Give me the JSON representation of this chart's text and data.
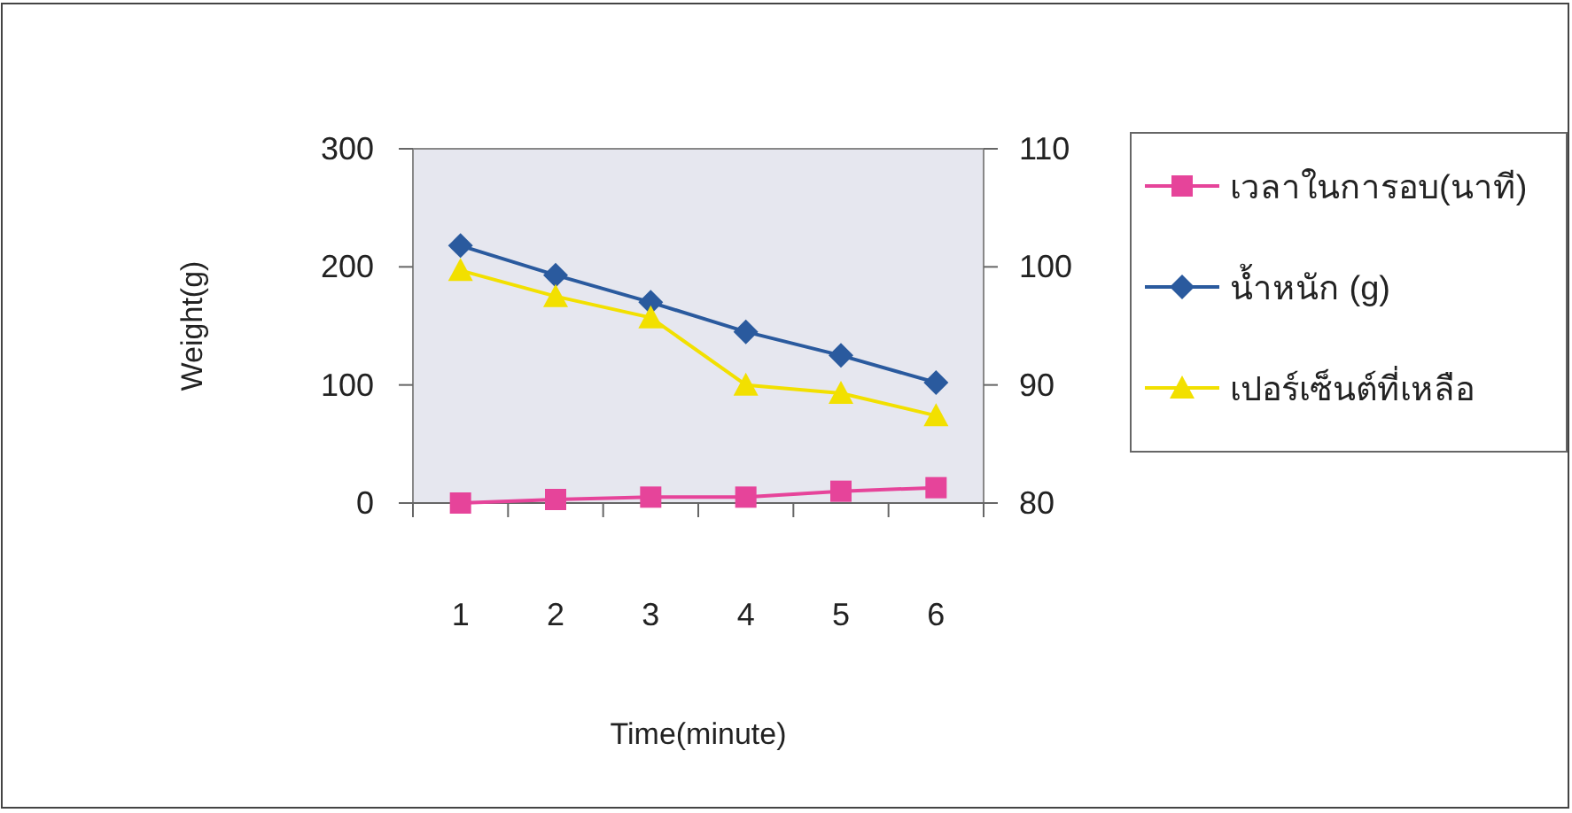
{
  "chart_data": {
    "type": "line",
    "xlabel": "Time(minute)",
    "ylabel": "Weight(g)",
    "categories": [
      "1",
      "2",
      "3",
      "4",
      "5",
      "6"
    ],
    "series": [
      {
        "name": "เวลาในการอบ(นาที)",
        "color": "#e6449a",
        "marker": "square",
        "values": [
          0,
          3,
          5,
          5,
          10,
          13
        ]
      },
      {
        "name": "น้ำหนัก (g)",
        "color": "#2a5a9e",
        "marker": "diamond",
        "values": [
          218,
          193,
          170,
          145,
          125,
          102
        ]
      },
      {
        "name": "เปอร์เซ็นต์ที่เหลือ",
        "color": "#f2e000",
        "marker": "triangle",
        "axis": "y2",
        "values": [
          99.7,
          97.5,
          95.7,
          90.0,
          89.3,
          87.4
        ]
      }
    ],
    "ylim": [
      0,
      300
    ],
    "yticks": [
      0,
      100,
      200,
      300
    ],
    "y2lim": [
      80,
      110
    ],
    "y2ticks": [
      80,
      90,
      100,
      110
    ],
    "grid": false,
    "legend": "right",
    "line_style": "solid"
  }
}
